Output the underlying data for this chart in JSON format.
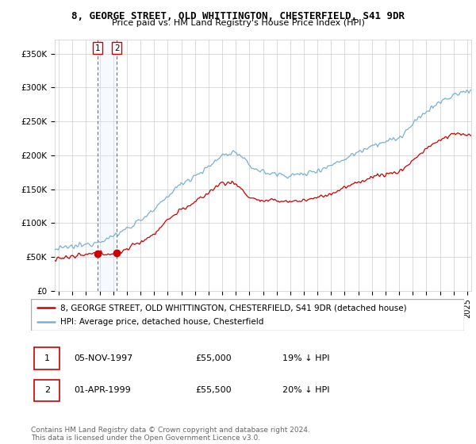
{
  "title": "8, GEORGE STREET, OLD WHITTINGTON, CHESTERFIELD, S41 9DR",
  "subtitle": "Price paid vs. HM Land Registry's House Price Index (HPI)",
  "legend_label_red": "8, GEORGE STREET, OLD WHITTINGTON, CHESTERFIELD, S41 9DR (detached house)",
  "legend_label_blue": "HPI: Average price, detached house, Chesterfield",
  "footer": "Contains HM Land Registry data © Crown copyright and database right 2024.\nThis data is licensed under the Open Government Licence v3.0.",
  "table_rows": [
    {
      "num": "1",
      "date": "05-NOV-1997",
      "price": "£55,000",
      "hpi": "19% ↓ HPI"
    },
    {
      "num": "2",
      "date": "01-APR-1999",
      "price": "£55,500",
      "hpi": "20% ↓ HPI"
    }
  ],
  "ylabel_ticks": [
    "£0",
    "£50K",
    "£100K",
    "£150K",
    "£200K",
    "£250K",
    "£300K",
    "£350K"
  ],
  "ytick_vals": [
    0,
    50000,
    100000,
    150000,
    200000,
    250000,
    300000,
    350000
  ],
  "ylim": [
    0,
    370000
  ],
  "xlim_start": 1994.7,
  "xlim_end": 2025.3,
  "sale1_x": 1997.846,
  "sale1_y": 55000,
  "sale2_x": 1999.25,
  "sale2_y": 55500,
  "red_color": "#cc0000",
  "blue_color": "#7ab0d4",
  "vline_color": "#cc0000",
  "bg_shade_color": "#ddeeff",
  "grid_color": "#cccccc",
  "title_fontsize": 9,
  "subtitle_fontsize": 8,
  "tick_fontsize": 7.5,
  "legend_fontsize": 7.5,
  "footer_fontsize": 6.5,
  "hpi_knots_t": [
    1994,
    1995,
    1996,
    1997,
    1998,
    1999,
    2000,
    2001,
    2002,
    2003,
    2004,
    2005,
    2006,
    2007,
    2008,
    2009,
    2010,
    2011,
    2012,
    2013,
    2014,
    2015,
    2016,
    2017,
    2018,
    2019,
    2020,
    2021,
    2022,
    2023,
    2024,
    2025
  ],
  "hpi_knots_v": [
    58000,
    62000,
    65000,
    68000,
    74000,
    80000,
    92000,
    105000,
    118000,
    140000,
    158000,
    170000,
    182000,
    200000,
    205000,
    185000,
    175000,
    172000,
    170000,
    172000,
    178000,
    185000,
    195000,
    205000,
    215000,
    220000,
    225000,
    245000,
    265000,
    278000,
    288000,
    295000
  ],
  "red_knots_t": [
    1994,
    1995,
    1996,
    1997,
    1997.846,
    1999.25,
    2000,
    2001,
    2002,
    2003,
    2004,
    2005,
    2006,
    2007,
    2008,
    2009,
    2010,
    2011,
    2012,
    2013,
    2014,
    2015,
    2016,
    2017,
    2018,
    2019,
    2020,
    2021,
    2022,
    2023,
    2024,
    2025
  ],
  "red_knots_v": [
    45000,
    48000,
    50000,
    53000,
    55000,
    55500,
    62000,
    72000,
    84000,
    105000,
    120000,
    130000,
    145000,
    160000,
    158000,
    138000,
    132000,
    133000,
    132000,
    133000,
    138000,
    143000,
    152000,
    160000,
    168000,
    172000,
    175000,
    192000,
    210000,
    222000,
    232000,
    230000
  ]
}
